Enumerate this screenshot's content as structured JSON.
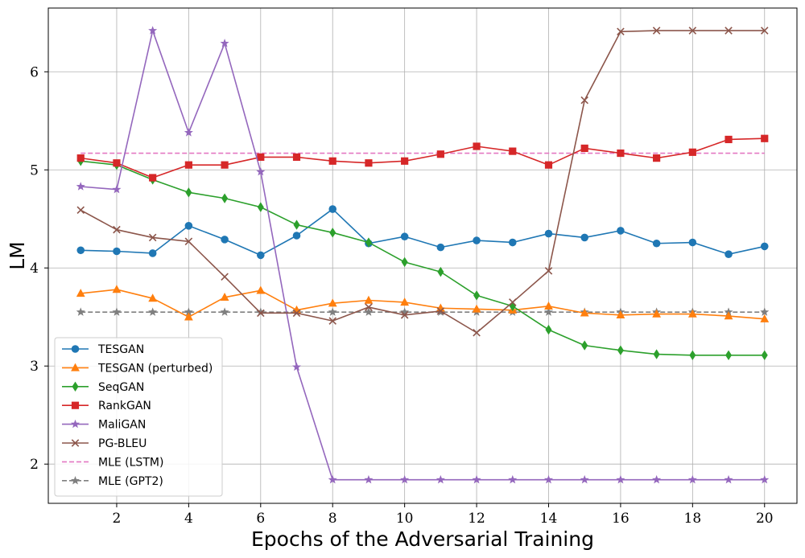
{
  "chart_data": {
    "type": "line",
    "title": "",
    "xlabel": "Epochs of the Adversarial Training",
    "ylabel": "LM",
    "xlim": [
      0.1,
      20.9
    ],
    "ylim": [
      1.6,
      6.65
    ],
    "xticks": [
      2,
      4,
      6,
      8,
      10,
      12,
      14,
      16,
      18,
      20
    ],
    "yticks": [
      2,
      3,
      4,
      5,
      6
    ],
    "grid": true,
    "legend_position": "lower-left",
    "x": [
      1,
      2,
      3,
      4,
      5,
      6,
      7,
      8,
      9,
      10,
      11,
      12,
      13,
      14,
      15,
      16,
      17,
      18,
      19,
      20
    ],
    "series": [
      {
        "name": "TESGAN",
        "color": "#1f77b4",
        "marker": "circle",
        "dash": "solid",
        "values": [
          4.18,
          4.17,
          4.15,
          4.43,
          4.29,
          4.13,
          4.33,
          4.6,
          4.25,
          4.32,
          4.21,
          4.28,
          4.26,
          4.35,
          4.31,
          4.38,
          4.25,
          4.26,
          4.14,
          4.22
        ]
      },
      {
        "name": "TESGAN (perturbed)",
        "color": "#ff7f0e",
        "marker": "triangle",
        "dash": "solid",
        "values": [
          3.74,
          3.78,
          3.69,
          3.5,
          3.7,
          3.77,
          3.57,
          3.64,
          3.67,
          3.65,
          3.59,
          3.58,
          3.57,
          3.61,
          3.54,
          3.52,
          3.53,
          3.53,
          3.51,
          3.48
        ]
      },
      {
        "name": "SeqGAN",
        "color": "#2ca02c",
        "marker": "diamond",
        "dash": "solid",
        "values": [
          5.09,
          5.05,
          4.9,
          4.77,
          4.71,
          4.62,
          4.44,
          4.36,
          4.26,
          4.06,
          3.96,
          3.72,
          3.61,
          3.37,
          3.21,
          3.16,
          3.12,
          3.11,
          3.11,
          3.11
        ]
      },
      {
        "name": "RankGAN",
        "color": "#d62728",
        "marker": "square",
        "dash": "solid",
        "values": [
          5.12,
          5.07,
          4.92,
          5.05,
          5.05,
          5.13,
          5.13,
          5.09,
          5.07,
          5.09,
          5.16,
          5.24,
          5.19,
          5.05,
          5.22,
          5.17,
          5.12,
          5.18,
          5.31,
          5.32
        ]
      },
      {
        "name": "MaliGAN",
        "color": "#9467bd",
        "marker": "star",
        "dash": "solid",
        "values": [
          4.83,
          4.8,
          6.42,
          5.38,
          6.29,
          4.98,
          2.99,
          1.84,
          1.84,
          1.84,
          1.84,
          1.84,
          1.84,
          1.84,
          1.84,
          1.84,
          1.84,
          1.84,
          1.84,
          1.84
        ]
      },
      {
        "name": "PG-BLEU",
        "color": "#8c564b",
        "marker": "x",
        "dash": "solid",
        "values": [
          4.59,
          4.39,
          4.31,
          4.27,
          3.91,
          3.54,
          3.54,
          3.46,
          3.6,
          3.52,
          3.56,
          3.34,
          3.65,
          3.97,
          5.71,
          6.41,
          6.42,
          6.42,
          6.42,
          6.42
        ]
      },
      {
        "name": "MLE (LSTM)",
        "color": "#e377c2",
        "marker": "none",
        "dash": "dashed",
        "values": [
          5.17,
          5.17,
          5.17,
          5.17,
          5.17,
          5.17,
          5.17,
          5.17,
          5.17,
          5.17,
          5.17,
          5.17,
          5.17,
          5.17,
          5.17,
          5.17,
          5.17,
          5.17,
          5.17,
          5.17
        ]
      },
      {
        "name": "MLE (GPT2)",
        "color": "#7f7f7f",
        "marker": "star",
        "dash": "dashed",
        "values": [
          3.55,
          3.55,
          3.55,
          3.55,
          3.55,
          3.55,
          3.55,
          3.55,
          3.55,
          3.55,
          3.55,
          3.55,
          3.55,
          3.55,
          3.55,
          3.55,
          3.55,
          3.55,
          3.55,
          3.55
        ]
      }
    ]
  }
}
